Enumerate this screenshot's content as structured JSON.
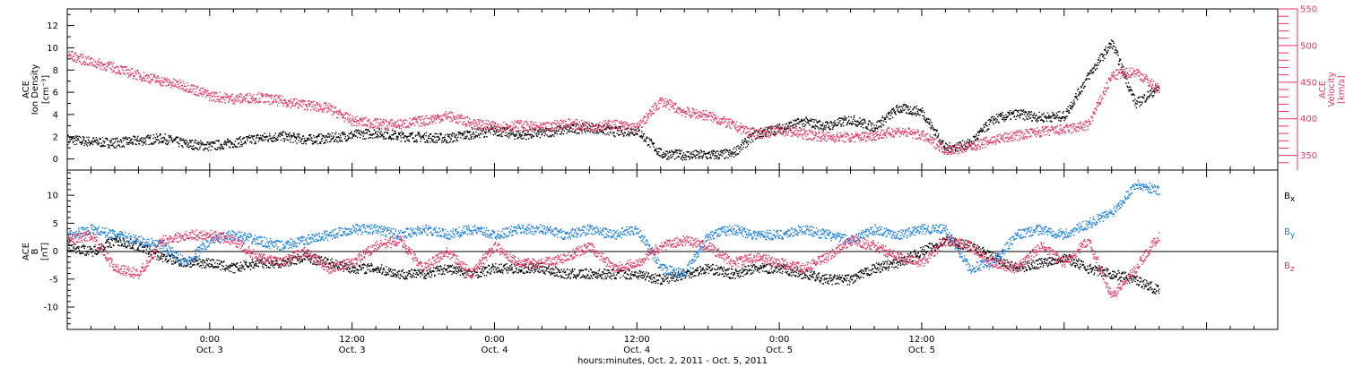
{
  "chart_data": [
    {
      "type": "scatter",
      "panel": "plasma",
      "ylabel_lines": [
        "ACE",
        "Ion Density"
      ],
      "ylabel_unit": "[cm⁻³]",
      "ylim": [
        -1,
        13.5
      ],
      "yticks": [
        0,
        2,
        4,
        6,
        8,
        10,
        12
      ],
      "y2label_lines": [
        "ACE",
        "Velocity"
      ],
      "y2label_unit": "[km/s]",
      "y2lim": [
        330,
        550
      ],
      "y2ticks": [
        350,
        400,
        450,
        500,
        550
      ],
      "series": [
        {
          "axis": "left",
          "color": "#000000",
          "x_hours": [
            0,
            2,
            4,
            6,
            8,
            10,
            12,
            14,
            16,
            18,
            20,
            22,
            24,
            26,
            28,
            30,
            32,
            34,
            36,
            38,
            40,
            42,
            44,
            46,
            48,
            50,
            52,
            54,
            56,
            58,
            60,
            62,
            64,
            66,
            68,
            70,
            72,
            74,
            76,
            78,
            80,
            82,
            84,
            86,
            88,
            90,
            92
          ],
          "values": [
            1.8,
            1.6,
            1.5,
            1.7,
            1.9,
            1.4,
            1.2,
            1.5,
            1.9,
            2.1,
            1.8,
            1.9,
            2.2,
            2.4,
            2.1,
            2.0,
            1.9,
            2.3,
            2.6,
            2.2,
            2.4,
            2.7,
            2.9,
            2.5,
            2.6,
            0.5,
            0.4,
            0.4,
            0.5,
            2.3,
            2.8,
            3.4,
            3.0,
            3.6,
            2.9,
            4.6,
            4.3,
            1.0,
            1.4,
            3.6,
            4.1,
            3.8,
            3.9,
            7.5,
            10.5,
            5.0,
            6.5
          ]
        },
        {
          "axis": "right",
          "color": "#e8335f",
          "x_hours": [
            0,
            2,
            4,
            6,
            8,
            10,
            12,
            14,
            16,
            18,
            20,
            22,
            24,
            26,
            28,
            30,
            32,
            34,
            36,
            38,
            40,
            42,
            44,
            46,
            48,
            50,
            52,
            54,
            56,
            58,
            60,
            62,
            64,
            66,
            68,
            70,
            72,
            74,
            76,
            78,
            80,
            82,
            84,
            86,
            88,
            90,
            92
          ],
          "values": [
            488,
            478,
            470,
            460,
            452,
            445,
            432,
            428,
            430,
            425,
            420,
            415,
            398,
            394,
            393,
            398,
            405,
            395,
            390,
            392,
            388,
            395,
            390,
            393,
            388,
            425,
            410,
            405,
            392,
            380,
            385,
            380,
            376,
            375,
            378,
            384,
            378,
            358,
            362,
            372,
            378,
            383,
            386,
            392,
            460,
            465,
            440
          ]
        }
      ]
    },
    {
      "type": "scatter",
      "panel": "magnetic-field",
      "ylabel_lines": [
        "ACE",
        "B"
      ],
      "ylabel_unit": "[nT]",
      "ylim": [
        -14,
        14.5
      ],
      "yticks": [
        -10,
        -5,
        0,
        5,
        10
      ],
      "legend_position": "right",
      "series": [
        {
          "name": "Bx",
          "color": "#000000",
          "x_hours": [
            0,
            2,
            4,
            6,
            8,
            10,
            12,
            14,
            16,
            18,
            20,
            22,
            24,
            26,
            28,
            30,
            32,
            34,
            36,
            38,
            40,
            42,
            44,
            46,
            48,
            50,
            52,
            54,
            56,
            58,
            60,
            62,
            64,
            66,
            68,
            70,
            72,
            74,
            76,
            78,
            80,
            82,
            84,
            86,
            88,
            90,
            92
          ],
          "values": [
            1,
            0,
            2,
            1,
            -1,
            -2,
            -2,
            -3,
            -2,
            -2,
            -1,
            -2,
            -3,
            -3,
            -4,
            -4,
            -3,
            -4,
            -3,
            -3,
            -3,
            -4,
            -4,
            -4,
            -4,
            -5,
            -4,
            -3,
            -4,
            -3,
            -3,
            -4,
            -5,
            -5,
            -3,
            -2,
            0,
            2,
            1,
            -1,
            -3,
            -2,
            -1,
            -3,
            -4,
            -5,
            -7
          ]
        },
        {
          "name": "By",
          "color": "#1a7fe0",
          "x_hours": [
            0,
            2,
            4,
            6,
            8,
            10,
            12,
            14,
            16,
            18,
            20,
            22,
            24,
            26,
            28,
            30,
            32,
            34,
            36,
            38,
            40,
            42,
            44,
            46,
            48,
            50,
            52,
            54,
            56,
            58,
            60,
            62,
            64,
            66,
            68,
            70,
            72,
            74,
            76,
            78,
            80,
            82,
            84,
            86,
            88,
            90,
            92
          ],
          "values": [
            3,
            4,
            3,
            2,
            1,
            -2,
            2,
            3,
            2,
            1,
            2,
            3,
            4,
            4,
            3,
            4,
            3,
            4,
            3,
            4,
            4,
            3,
            4,
            3,
            4,
            -3,
            -4,
            3,
            4,
            3,
            3,
            4,
            3,
            2,
            4,
            3,
            4,
            4,
            -3,
            -2,
            3,
            4,
            3,
            5,
            7,
            12,
            11
          ]
        },
        {
          "name": "Bz",
          "color": "#e8335f",
          "x_hours": [
            0,
            2,
            4,
            6,
            8,
            10,
            12,
            14,
            16,
            18,
            20,
            22,
            24,
            26,
            28,
            30,
            32,
            34,
            36,
            38,
            40,
            42,
            44,
            46,
            48,
            50,
            52,
            54,
            56,
            58,
            60,
            62,
            64,
            66,
            68,
            70,
            72,
            74,
            76,
            78,
            80,
            82,
            84,
            86,
            88,
            90,
            92
          ],
          "values": [
            2,
            3,
            -3,
            -4,
            2,
            3,
            3,
            2,
            -1,
            -2,
            0,
            -3,
            -2,
            1,
            2,
            -3,
            0,
            -4,
            1,
            -2,
            -2,
            -1,
            1,
            -3,
            -2,
            1,
            2,
            1,
            -2,
            -1,
            -2,
            -3,
            -1,
            2,
            1,
            -1,
            -2,
            2,
            1,
            -2,
            -3,
            1,
            -2,
            2,
            -8,
            -3,
            3
          ]
        }
      ]
    }
  ],
  "x_axis": {
    "title": "hours:minutes, Oct. 2, 2011 - Oct. 5, 2011",
    "range_hours": [
      0,
      102
    ],
    "ticks": [
      {
        "h": 12,
        "top": "0:00",
        "bottom": "Oct. 3"
      },
      {
        "h": 24,
        "top": "12:00",
        "bottom": "Oct. 3"
      },
      {
        "h": 36,
        "top": "0:00",
        "bottom": "Oct. 4"
      },
      {
        "h": 48,
        "top": "12:00",
        "bottom": "Oct. 4"
      },
      {
        "h": 60,
        "top": "0:00",
        "bottom": "Oct. 5"
      },
      {
        "h": 72,
        "top": "12:00",
        "bottom": "Oct. 5"
      }
    ]
  },
  "legend": {
    "bx": "B",
    "bx_sub": "x",
    "by": "B",
    "by_sub": "y",
    "bz": "B",
    "bz_sub": "z"
  }
}
